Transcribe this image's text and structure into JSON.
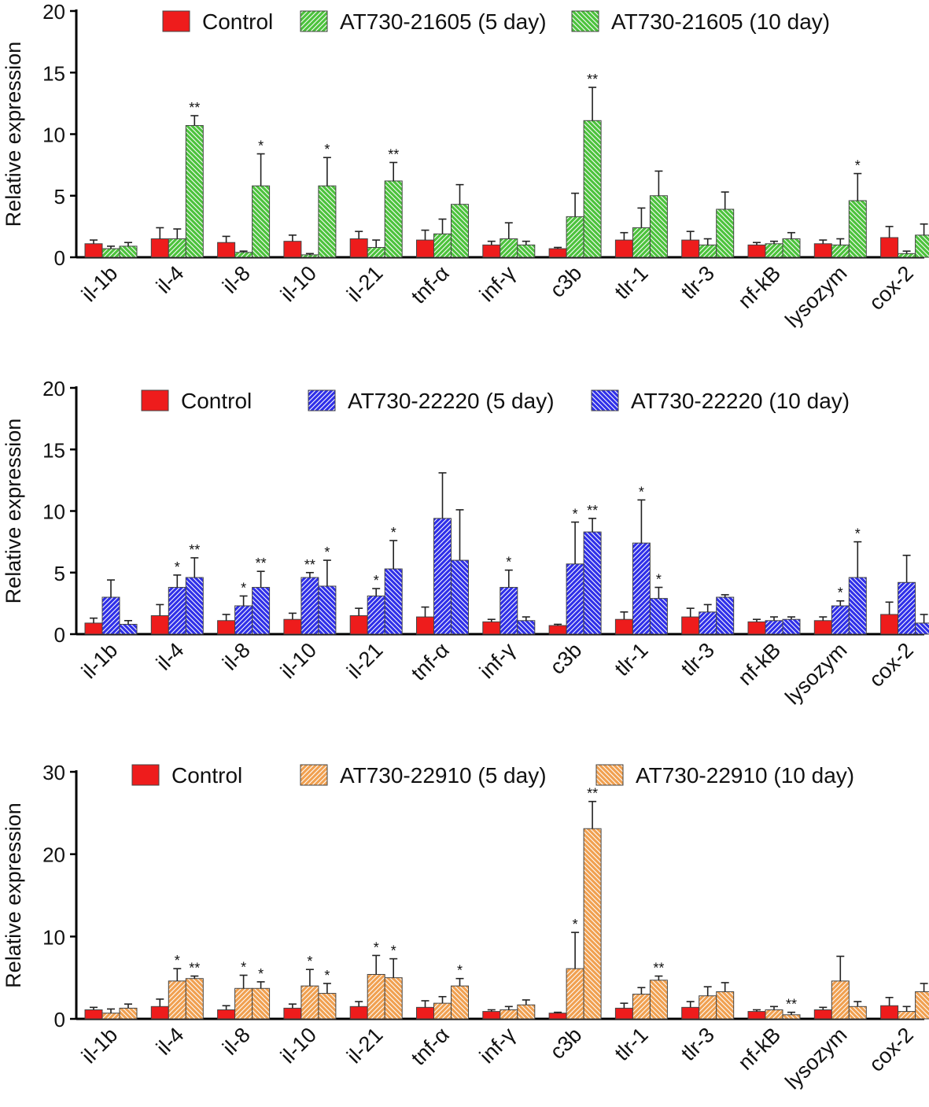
{
  "chart_data": [
    {
      "type": "bar",
      "ylabel": "Relative expression",
      "ylim": [
        0,
        20
      ],
      "yticks": [
        0,
        5,
        10,
        15,
        20
      ],
      "categories": [
        "il-1b",
        "il-4",
        "il-8",
        "il-10",
        "il-21",
        "tnf-α",
        "inf-γ",
        "c3b",
        "tlr-1",
        "tlr-3",
        "nf-kB",
        "lysozym",
        "cox-2"
      ],
      "series": [
        {
          "name": "Control",
          "color": "#ee1c1c",
          "pattern": "solid",
          "values": [
            1.1,
            1.5,
            1.2,
            1.3,
            1.5,
            1.4,
            1.0,
            0.7,
            1.4,
            1.4,
            1.0,
            1.1,
            1.6
          ],
          "errors": [
            0.3,
            0.9,
            0.5,
            0.5,
            0.6,
            0.8,
            0.3,
            0.1,
            0.6,
            0.7,
            0.2,
            0.3,
            0.9
          ],
          "significance": [
            "",
            "",
            "",
            "",
            "",
            "",
            "",
            "",
            "",
            "",
            "",
            "",
            ""
          ]
        },
        {
          "name": "AT730-21605 (5 day)",
          "color": "#4cc23c",
          "pattern": "hatch-right",
          "values": [
            0.7,
            1.5,
            0.4,
            0.2,
            0.8,
            1.9,
            1.5,
            3.3,
            2.4,
            1.0,
            1.1,
            1.0,
            0.3
          ],
          "errors": [
            0.2,
            0.8,
            0.1,
            0.1,
            0.6,
            1.2,
            1.3,
            1.9,
            1.6,
            0.5,
            0.2,
            0.5,
            0.2
          ],
          "significance": [
            "",
            "",
            "",
            "",
            "",
            "",
            "",
            "",
            "",
            "",
            "",
            "",
            ""
          ]
        },
        {
          "name": "AT730-21605 (10 day)",
          "color": "#4cc23c",
          "pattern": "hatch-left",
          "values": [
            0.9,
            10.7,
            5.8,
            5.8,
            6.2,
            4.3,
            1.0,
            11.1,
            5.0,
            3.9,
            1.5,
            4.6,
            1.8
          ],
          "errors": [
            0.3,
            0.8,
            2.6,
            2.3,
            1.5,
            1.6,
            0.3,
            2.7,
            2.0,
            1.4,
            0.5,
            2.2,
            0.9
          ],
          "significance": [
            "",
            "**",
            "*",
            "*",
            "**",
            "",
            "",
            "**",
            "",
            "",
            "",
            "*",
            ""
          ]
        }
      ]
    },
    {
      "type": "bar",
      "ylabel": "Relative expression",
      "ylim": [
        0,
        20
      ],
      "yticks": [
        0,
        5,
        10,
        15,
        20
      ],
      "categories": [
        "il-1b",
        "il-4",
        "il-8",
        "il-10",
        "il-21",
        "tnf-α",
        "inf-γ",
        "c3b",
        "tlr-1",
        "tlr-3",
        "nf-kB",
        "lysozym",
        "cox-2"
      ],
      "series": [
        {
          "name": "Control",
          "color": "#ee1c1c",
          "pattern": "solid",
          "values": [
            0.9,
            1.5,
            1.1,
            1.2,
            1.5,
            1.4,
            1.0,
            0.7,
            1.2,
            1.4,
            1.0,
            1.1,
            1.6
          ],
          "errors": [
            0.4,
            0.9,
            0.5,
            0.5,
            0.6,
            0.8,
            0.2,
            0.1,
            0.6,
            0.7,
            0.2,
            0.3,
            1.0
          ],
          "significance": [
            "",
            "",
            "",
            "",
            "",
            "",
            "",
            "",
            "",
            "",
            "",
            "",
            ""
          ]
        },
        {
          "name": "AT730-22220 (5 day)",
          "color": "#2f2fe8",
          "pattern": "hatch-right",
          "values": [
            3.0,
            3.8,
            2.3,
            4.6,
            3.1,
            9.4,
            3.8,
            5.7,
            7.4,
            1.8,
            1.1,
            2.3,
            4.2
          ],
          "errors": [
            1.4,
            1.0,
            0.8,
            0.4,
            0.6,
            3.7,
            1.4,
            3.4,
            3.5,
            0.6,
            0.3,
            0.4,
            2.2
          ],
          "significance": [
            "",
            "*",
            "*",
            "**",
            "*",
            "",
            "*",
            "*",
            "*",
            "",
            "",
            "*",
            ""
          ]
        },
        {
          "name": "AT730-22220 (10 day)",
          "color": "#2f2fe8",
          "pattern": "hatch-left",
          "values": [
            0.8,
            4.6,
            3.8,
            3.9,
            5.3,
            6.0,
            1.1,
            8.3,
            2.9,
            3.0,
            1.2,
            4.6,
            0.9
          ],
          "errors": [
            0.3,
            1.6,
            1.3,
            2.1,
            2.3,
            4.1,
            0.3,
            1.1,
            0.9,
            0.2,
            0.2,
            2.9,
            0.7
          ],
          "significance": [
            "",
            "**",
            "**",
            "*",
            "*",
            "",
            "",
            "**",
            "*",
            "",
            "",
            "*",
            ""
          ]
        }
      ]
    },
    {
      "type": "bar",
      "ylabel": "Relative expression",
      "ylim": [
        0,
        30
      ],
      "yticks": [
        0,
        10,
        20,
        30
      ],
      "categories": [
        "il-1b",
        "il-4",
        "il-8",
        "il-10",
        "il-21",
        "tnf-α",
        "inf-γ",
        "c3b",
        "tlr-1",
        "tlr-3",
        "nf-kB",
        "lysozym",
        "cox-2"
      ],
      "series": [
        {
          "name": "Control",
          "color": "#ee1c1c",
          "pattern": "solid",
          "values": [
            1.1,
            1.5,
            1.1,
            1.3,
            1.5,
            1.4,
            0.9,
            0.7,
            1.3,
            1.4,
            0.9,
            1.1,
            1.6
          ],
          "errors": [
            0.3,
            0.9,
            0.5,
            0.5,
            0.6,
            0.8,
            0.2,
            0.1,
            0.6,
            0.7,
            0.2,
            0.3,
            1.0
          ],
          "significance": [
            "",
            "",
            "",
            "",
            "",
            "",
            "",
            "",
            "",
            "",
            "",
            "",
            ""
          ]
        },
        {
          "name": "AT730-22910 (5 day)",
          "color": "#f0a050",
          "pattern": "hatch-right",
          "values": [
            0.7,
            4.6,
            3.7,
            4.0,
            5.4,
            1.9,
            1.1,
            6.1,
            3.0,
            2.8,
            1.1,
            4.6,
            0.9
          ],
          "errors": [
            0.5,
            1.5,
            1.6,
            2.0,
            2.3,
            0.8,
            0.4,
            4.4,
            0.8,
            1.1,
            0.4,
            3.0,
            0.6
          ],
          "significance": [
            "",
            "*",
            "*",
            "*",
            "*",
            "",
            "",
            "*",
            "",
            "",
            "",
            "",
            ""
          ]
        },
        {
          "name": "AT730-22910 (10 day)",
          "color": "#f0a050",
          "pattern": "hatch-left",
          "values": [
            1.3,
            4.9,
            3.7,
            3.1,
            5.0,
            4.0,
            1.7,
            23.1,
            4.7,
            3.3,
            0.5,
            1.5,
            3.3
          ],
          "errors": [
            0.5,
            0.3,
            0.8,
            1.2,
            2.3,
            0.9,
            0.6,
            3.3,
            0.5,
            1.1,
            0.3,
            0.6,
            1.0
          ],
          "significance": [
            "",
            "**",
            "*",
            "*",
            "*",
            "*",
            "",
            "**",
            "**",
            "",
            "**",
            "",
            ""
          ]
        }
      ]
    }
  ]
}
